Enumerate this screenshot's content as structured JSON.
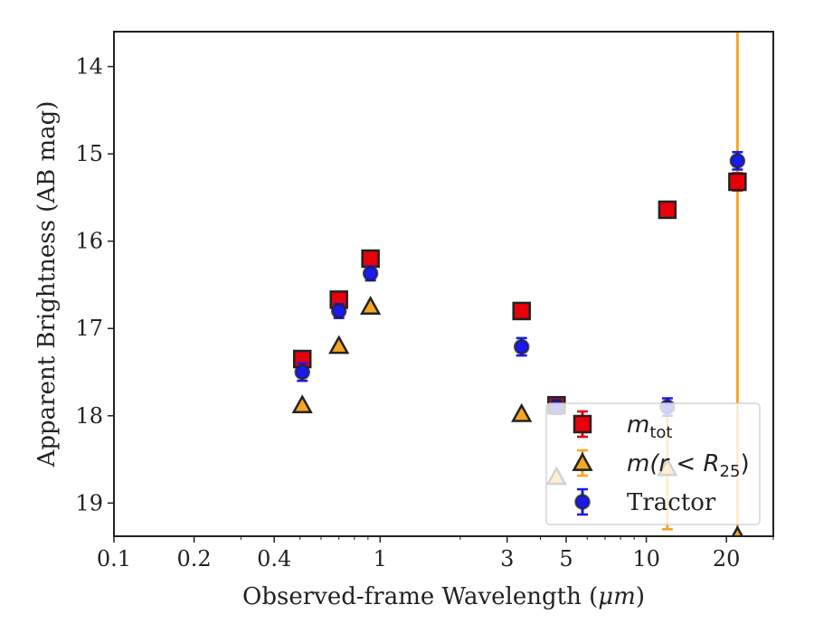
{
  "chart_data": {
    "type": "scatter",
    "xlabel": "Observed-frame Wavelength (",
    "xlabel_unit": "μm",
    "xlabel_close": ")",
    "ylabel": "Apparent Brightness (AB mag)",
    "xscale": "log",
    "xlim": [
      0.1,
      30
    ],
    "ylim": [
      19.38,
      13.6
    ],
    "y_inverted": true,
    "xticks": [
      0.1,
      0.2,
      0.4,
      1,
      3,
      5,
      10,
      20
    ],
    "xtick_labels": [
      "0.1",
      "0.2",
      "0.4",
      "1",
      "3",
      "5",
      "10",
      "20"
    ],
    "yticks": [
      14,
      15,
      16,
      17,
      18,
      19
    ],
    "ytick_labels": [
      "14",
      "15",
      "16",
      "17",
      "18",
      "19"
    ],
    "legend_position": "lower-right",
    "series": [
      {
        "key": "mtot",
        "label_main": "m",
        "label_sub": "tot",
        "marker": "square",
        "color": "#e8000b",
        "edge": "#222222",
        "points": [
          {
            "x": 0.51,
            "y": 17.35,
            "err": 0.08
          },
          {
            "x": 0.7,
            "y": 16.67,
            "err": 0.07
          },
          {
            "x": 0.92,
            "y": 16.2,
            "err": 0.07
          },
          {
            "x": 3.4,
            "y": 16.8,
            "err": 0.07
          },
          {
            "x": 4.6,
            "y": 17.88,
            "err": 0.06
          },
          {
            "x": 12.0,
            "y": 15.64,
            "err": 0.08
          },
          {
            "x": 22.0,
            "y": 15.32,
            "err": 0.1
          }
        ]
      },
      {
        "key": "mr25",
        "label_main": "m(r < R",
        "label_sub": "25",
        "label_close": ")",
        "marker": "triangle",
        "color": "#f5a623",
        "edge": "#222222",
        "points": [
          {
            "x": 0.51,
            "y": 17.88,
            "err": 0.0
          },
          {
            "x": 0.7,
            "y": 17.2,
            "err": 0.0
          },
          {
            "x": 0.92,
            "y": 16.75,
            "err": 0.0
          },
          {
            "x": 3.4,
            "y": 17.98,
            "err": 0.0
          },
          {
            "x": 4.6,
            "y": 18.7,
            "err": 0.0
          },
          {
            "x": 12.0,
            "y": 18.6,
            "err": 0.7
          },
          {
            "x": 22.0,
            "y": 19.38,
            "err": 6.0
          }
        ]
      },
      {
        "key": "tractor",
        "label_main": "Tractor",
        "marker": "circle",
        "color": "#1a1aee",
        "edge": "#222222",
        "points": [
          {
            "x": 0.51,
            "y": 17.5,
            "err": 0.1
          },
          {
            "x": 0.7,
            "y": 16.8,
            "err": 0.08
          },
          {
            "x": 0.92,
            "y": 16.37,
            "err": 0.08
          },
          {
            "x": 3.4,
            "y": 17.21,
            "err": 0.1
          },
          {
            "x": 4.6,
            "y": 17.9,
            "err": 0.08
          },
          {
            "x": 12.0,
            "y": 17.9,
            "err": 0.1
          },
          {
            "x": 22.0,
            "y": 15.08,
            "err": 0.1
          }
        ]
      }
    ]
  }
}
